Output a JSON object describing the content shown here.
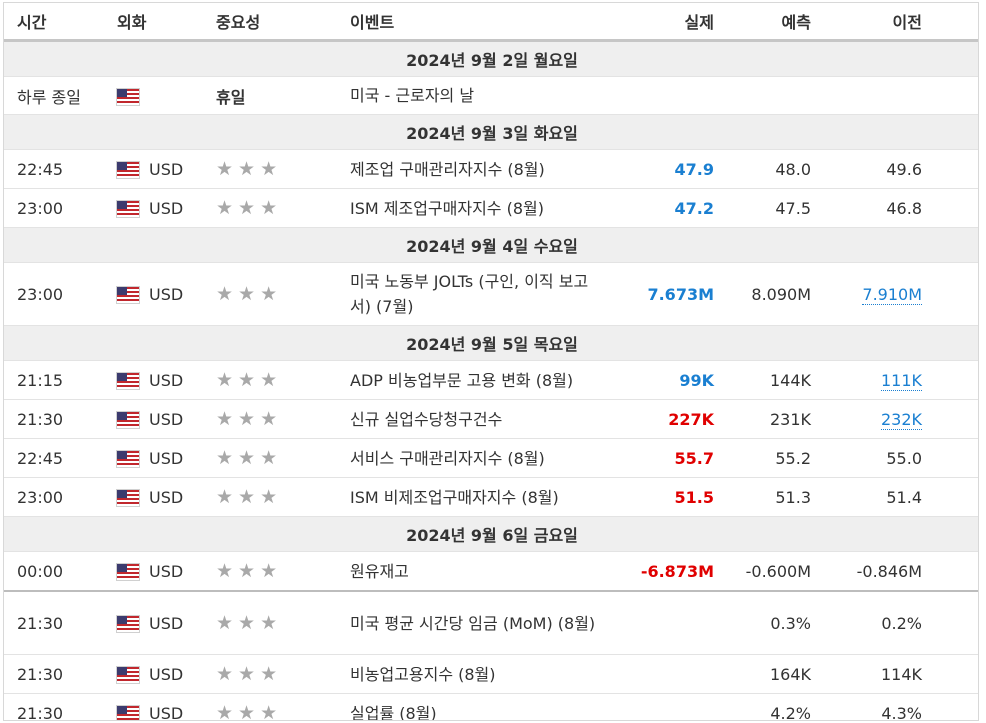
{
  "headers": {
    "time": "시간",
    "currency": "외화",
    "importance": "중요성",
    "event": "이벤트",
    "actual": "실제",
    "forecast": "예측",
    "previous": "이전"
  },
  "star_glyph": "★★★",
  "dates": {
    "d1": "2024년 9월 2일 월요일",
    "d2": "2024년 9월 3일 화요일",
    "d3": "2024년 9월 4일 수요일",
    "d4": "2024년 9월 5일 목요일",
    "d5": "2024년 9월 6일 금요일"
  },
  "holiday": {
    "time": "하루 종일",
    "importance": "휴일",
    "event": "미국 - 근로자의 날"
  },
  "events": [
    {
      "time": "22:45",
      "currency": "USD",
      "event": "제조업 구매관리자지수 (8월)",
      "actual": "47.9",
      "actual_color": "blue",
      "forecast": "48.0",
      "previous": "49.6"
    },
    {
      "time": "23:00",
      "currency": "USD",
      "event": "ISM 제조업구매자지수 (8월)",
      "actual": "47.2",
      "actual_color": "blue",
      "forecast": "47.5",
      "previous": "46.8"
    },
    {
      "time": "23:00",
      "currency": "USD",
      "event": "미국 노동부 JOLTs (구인, 이직 보고서) (7월)",
      "actual": "7.673M",
      "actual_color": "blue",
      "forecast": "8.090M",
      "previous": "7.910M"
    },
    {
      "time": "21:15",
      "currency": "USD",
      "event": "ADP 비농업부문 고용 변화 (8월)",
      "actual": "99K",
      "actual_color": "blue",
      "forecast": "144K",
      "previous": "111K"
    },
    {
      "time": "21:30",
      "currency": "USD",
      "event": "신규 실업수당청구건수",
      "actual": "227K",
      "actual_color": "red",
      "forecast": "231K",
      "previous": "232K"
    },
    {
      "time": "22:45",
      "currency": "USD",
      "event": "서비스 구매관리자지수 (8월)",
      "actual": "55.7",
      "actual_color": "red",
      "forecast": "55.2",
      "previous": "55.0"
    },
    {
      "time": "23:00",
      "currency": "USD",
      "event": "ISM 비제조업구매자지수 (8월)",
      "actual": "51.5",
      "actual_color": "red",
      "forecast": "51.3",
      "previous": "51.4"
    },
    {
      "time": "00:00",
      "currency": "USD",
      "event": "원유재고",
      "actual": "-6.873M",
      "actual_color": "red",
      "forecast": "-0.600M",
      "previous": "-0.846M"
    },
    {
      "time": "21:30",
      "currency": "USD",
      "event": "미국 평균 시간당 임금 (MoM) (8월)",
      "actual": "",
      "forecast": "0.3%",
      "previous": "0.2%"
    },
    {
      "time": "21:30",
      "currency": "USD",
      "event": "비농업고용지수 (8월)",
      "actual": "",
      "forecast": "164K",
      "previous": "114K"
    },
    {
      "time": "21:30",
      "currency": "USD",
      "event": "실업률 (8월)",
      "actual": "",
      "forecast": "4.2%",
      "previous": "4.3%"
    }
  ],
  "colors": {
    "actual_up": "#1a7fd1",
    "actual_down": "#e00000",
    "date_row_bg": "#efefef",
    "star": "#a9a9a9"
  }
}
